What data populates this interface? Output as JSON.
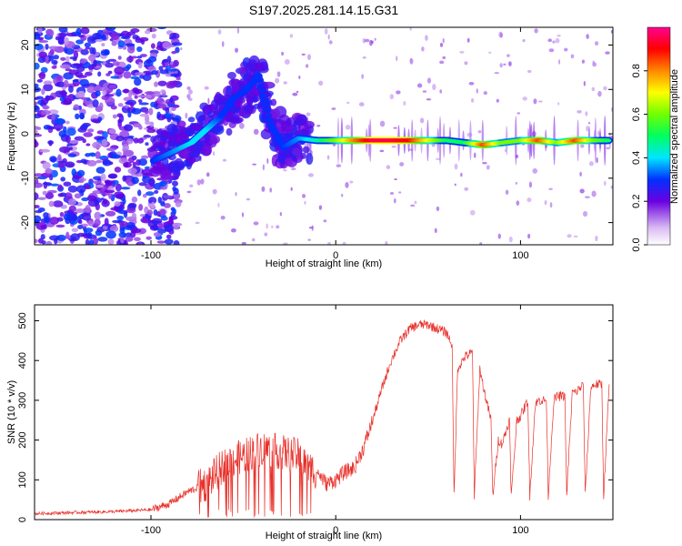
{
  "title": "S197.2025.281.14.15.G31",
  "chart_data": [
    {
      "type": "heatmap",
      "xlabel": "Height of straight line (km)",
      "ylabel": "Frequency (Hz)",
      "xlim": [
        -163,
        150
      ],
      "ylim": [
        -25,
        24
      ],
      "x_ticks": [
        -100,
        0,
        100
      ],
      "y_ticks": [
        -20,
        -10,
        0,
        10,
        20
      ],
      "colorbar": {
        "label": "Normalized spectral amplitude",
        "range": [
          0.0,
          1.0
        ],
        "ticks": [
          0.0,
          0.2,
          0.4,
          0.6,
          0.8
        ]
      },
      "ridge": {
        "x": [
          -98,
          -88,
          -78,
          -70,
          -62,
          -55,
          -48,
          -42,
          -35,
          -28,
          -20,
          -10,
          0,
          10,
          20,
          30,
          40,
          50,
          60,
          70,
          80,
          90,
          100,
          110,
          120,
          130,
          140,
          148
        ],
        "y": [
          -6,
          -4,
          -2,
          1,
          4,
          8,
          10,
          13,
          2,
          -3,
          -1,
          -1.5,
          -1.5,
          -1.5,
          -1.5,
          -1.5,
          -1.5,
          -1.5,
          -1.5,
          -2,
          -2.5,
          -2,
          -1.5,
          -1.5,
          -2,
          -1.5,
          -1.5,
          -1.5
        ],
        "amplitude": [
          0.3,
          0.35,
          0.4,
          0.4,
          0.3,
          0.3,
          0.3,
          0.3,
          0.3,
          0.3,
          0.35,
          0.45,
          0.6,
          0.8,
          0.95,
          0.95,
          0.9,
          0.7,
          0.5,
          0.5,
          0.85,
          0.6,
          0.6,
          0.85,
          0.6,
          0.85,
          0.6,
          0.5
        ]
      }
    },
    {
      "type": "line",
      "xlabel": "Height of straight line (km)",
      "ylabel": "SNR (10 * v/v)",
      "xlim": [
        -163,
        150
      ],
      "ylim": [
        0,
        540
      ],
      "x_ticks": [
        -100,
        0,
        100
      ],
      "y_ticks": [
        0,
        100,
        200,
        300,
        400,
        500
      ],
      "series": [
        {
          "name": "SNR",
          "color": "#e8302a",
          "x": [
            -163,
            -140,
            -120,
            -100,
            -90,
            -80,
            -70,
            -60,
            -50,
            -40,
            -30,
            -20,
            -15,
            -10,
            -5,
            0,
            5,
            10,
            15,
            20,
            25,
            30,
            35,
            40,
            45,
            50,
            55,
            60,
            63,
            64,
            66,
            70,
            74,
            75,
            78,
            80,
            84,
            85,
            88,
            90,
            94,
            95,
            98,
            100,
            104,
            105,
            108,
            110,
            114,
            115,
            118,
            120,
            124,
            125,
            128,
            130,
            134,
            135,
            138,
            140,
            144,
            145,
            148
          ],
          "y": [
            15,
            18,
            20,
            25,
            40,
            70,
            90,
            140,
            160,
            180,
            170,
            160,
            130,
            120,
            90,
            100,
            120,
            130,
            180,
            250,
            330,
            400,
            450,
            480,
            490,
            490,
            480,
            470,
            440,
            60,
            380,
            410,
            420,
            60,
            380,
            330,
            250,
            60,
            200,
            190,
            250,
            60,
            250,
            260,
            300,
            60,
            290,
            300,
            300,
            60,
            300,
            310,
            310,
            60,
            320,
            320,
            340,
            60,
            330,
            340,
            340,
            60,
            340
          ]
        }
      ]
    }
  ]
}
